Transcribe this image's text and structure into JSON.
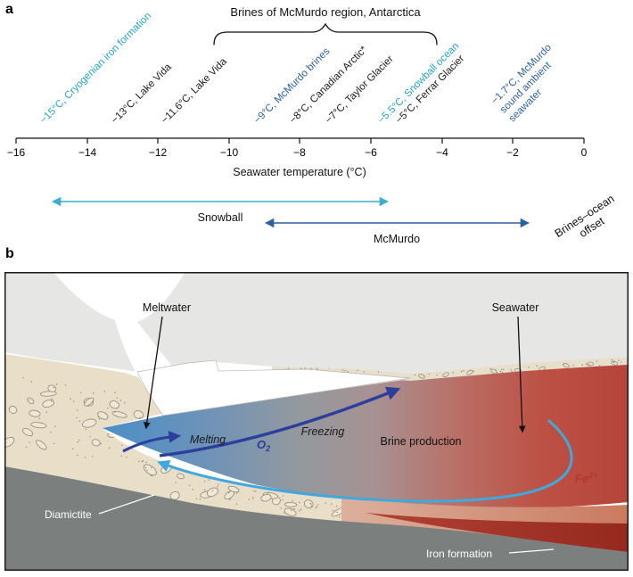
{
  "panel_a": {
    "panel_label": "a",
    "title": "Brines of McMurdo region, Antarctica",
    "axis": {
      "min": -16,
      "max": 0,
      "ticks": [
        "−16",
        "−14",
        "−12",
        "−10",
        "−8",
        "−6",
        "−4",
        "−2",
        "0"
      ],
      "label": "Seawater temperature (°C)"
    },
    "data_points": [
      {
        "value": -15,
        "label": "−15°C, Cryogenian iron formation",
        "color": "cyan"
      },
      {
        "value": -13,
        "label": "−13°C, Lake Vida",
        "color": "black"
      },
      {
        "value": -11.6,
        "label": "−11.6°C, Lake Vida",
        "color": "black"
      },
      {
        "value": -9,
        "label": "−9°C, McMurdo brines",
        "color": "blue"
      },
      {
        "value": -8,
        "label": "−8°C, Canadian Arctic*",
        "color": "black"
      },
      {
        "value": -7,
        "label": "−7°C, Taylor Glacier",
        "color": "black"
      },
      {
        "value": -5.5,
        "label": "−5.5°C, Snowball ocean",
        "color": "cyan"
      },
      {
        "value": -5,
        "label": "−5°C, Ferrar Glacier",
        "color": "black"
      },
      {
        "value": -1.7,
        "label": "−1.7°C, McMurdo\nsound ambient\nseawater",
        "color": "blue"
      }
    ],
    "ranges": [
      {
        "label": "Snowball",
        "from": -15,
        "to": -5.5,
        "color": "cyan"
      },
      {
        "label": "McMurdo",
        "from": -9,
        "to": -1.7,
        "color": "blue"
      }
    ],
    "offset_label": "Brines–ocean\noffset"
  },
  "panel_b": {
    "panel_label": "b",
    "labels": {
      "meltwater": "Meltwater",
      "seawater": "Seawater",
      "melting": "Melting",
      "freezing": "Freezing",
      "o2_base": "O",
      "o2_sub": "2",
      "brine_production": "Brine production",
      "fe_base": "Fe",
      "fe_sup": "2+",
      "diamictite": "Diamictite",
      "iron_formation": "Iron formation"
    }
  },
  "colors": {
    "accent_cyan": "#21a5c9",
    "accent_blue": "#2c5fa8",
    "arrow_dark_blue": "#2b3f9b",
    "arrow_light_blue": "#3fa8dc",
    "fe_red": "#b5372b",
    "iron_formation_red": "#a13327"
  },
  "chart_data": {
    "type": "scatter",
    "title": "Brines of McMurdo region, Antarctica",
    "xlabel": "Seawater temperature (°C)",
    "xlim": [
      -16,
      0
    ],
    "points": [
      {
        "x": -15,
        "label": "Cryogenian iron formation"
      },
      {
        "x": -13,
        "label": "Lake Vida"
      },
      {
        "x": -11.6,
        "label": "Lake Vida"
      },
      {
        "x": -9,
        "label": "McMurdo brines"
      },
      {
        "x": -8,
        "label": "Canadian Arctic*"
      },
      {
        "x": -7,
        "label": "Taylor Glacier"
      },
      {
        "x": -5.5,
        "label": "Snowball ocean"
      },
      {
        "x": -5,
        "label": "Ferrar Glacier"
      },
      {
        "x": -1.7,
        "label": "McMurdo sound ambient seawater"
      }
    ],
    "ranges": [
      {
        "label": "Snowball",
        "from": -15,
        "to": -5.5
      },
      {
        "label": "McMurdo",
        "from": -9,
        "to": -1.7
      }
    ]
  }
}
